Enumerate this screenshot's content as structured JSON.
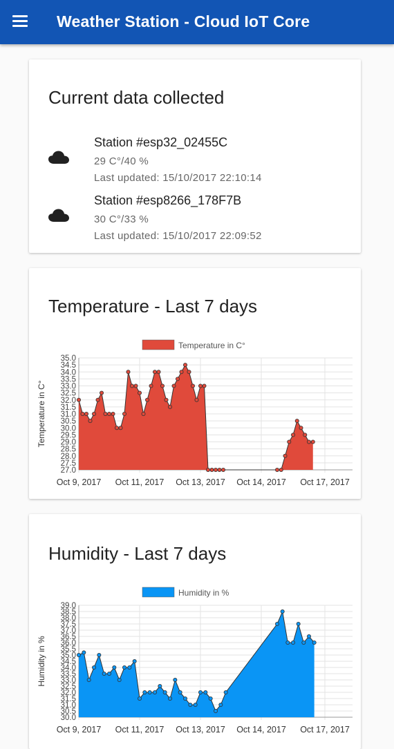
{
  "appbar": {
    "title": "Weather Station - Cloud IoT Core",
    "menu_icon": "menu-icon"
  },
  "current": {
    "title": "Current data collected",
    "stations": [
      {
        "name": "Station #esp32_02455C",
        "reading": "29 C°/40 %",
        "updated": "Last updated: 15/10/2017 22:10:14",
        "icon": "cloud-icon"
      },
      {
        "name": "Station #esp8266_178F7B",
        "reading": "30 C°/33 %",
        "updated": "Last updated: 15/10/2017 22:09:52",
        "icon": "cloud-icon"
      }
    ]
  },
  "temperature": {
    "title": "Temperature - Last 7 days"
  },
  "humidity": {
    "title": "Humidity - Last 7 days"
  },
  "chart_data": [
    {
      "type": "area",
      "legend": "Temperature in C°",
      "legend_position": "top",
      "ylabel": "Temperature in C°",
      "xlabel": "",
      "ylim": [
        27,
        35
      ],
      "ytick_step": 0.5,
      "yticks": [
        "27.0",
        "27.5",
        "28.0",
        "28.5",
        "29.0",
        "29.5",
        "30.0",
        "30.5",
        "31.0",
        "31.5",
        "32.0",
        "32.5",
        "33.0",
        "33.5",
        "34.0",
        "34.5",
        "35.0"
      ],
      "xlim": [
        "2017-10-09",
        "2017-10-17"
      ],
      "xticks": [
        "Oct 9, 2017",
        "Oct 11, 2017",
        "Oct 13, 2017",
        "Oct 14, 2017",
        "Oct 17, 2017"
      ],
      "grid": true,
      "color": "#e04a3b",
      "x": [
        "2017-10-09 00:00",
        "2017-10-09 03:00",
        "2017-10-09 06:00",
        "2017-10-09 09:00",
        "2017-10-09 12:00",
        "2017-10-09 15:00",
        "2017-10-09 18:00",
        "2017-10-09 21:00",
        "2017-10-10 00:00",
        "2017-10-10 03:00",
        "2017-10-10 06:00",
        "2017-10-10 09:00",
        "2017-10-10 12:00",
        "2017-10-10 15:00",
        "2017-10-10 18:00",
        "2017-10-10 21:00",
        "2017-10-11 00:00",
        "2017-10-11 03:00",
        "2017-10-11 06:00",
        "2017-10-11 09:00",
        "2017-10-11 12:00",
        "2017-10-11 15:00",
        "2017-10-11 18:00",
        "2017-10-11 21:00",
        "2017-10-12 00:00",
        "2017-10-12 03:00",
        "2017-10-12 06:00",
        "2017-10-12 09:00",
        "2017-10-12 12:00",
        "2017-10-12 15:00",
        "2017-10-12 18:00",
        "2017-10-12 21:00",
        "2017-10-13 00:00",
        "2017-10-13 03:00",
        "2017-10-13 06:00",
        "2017-10-13 09:00",
        "2017-10-13 12:00",
        "2017-10-13 15:00",
        "2017-10-13 18:00",
        "2017-10-15 12:00",
        "2017-10-15 15:00",
        "2017-10-15 18:00",
        "2017-10-15 21:00",
        "2017-10-16 00:00",
        "2017-10-16 03:00",
        "2017-10-16 06:00",
        "2017-10-16 09:00",
        "2017-10-16 12:00",
        "2017-10-16 15:00"
      ],
      "values": [
        32.0,
        31.0,
        31.0,
        30.5,
        31.0,
        32.0,
        32.5,
        31.0,
        31.0,
        31.0,
        30.0,
        30.0,
        31.0,
        34.0,
        33.0,
        33.0,
        32.5,
        31.0,
        32.0,
        33.0,
        34.0,
        34.0,
        33.0,
        32.0,
        31.5,
        33.0,
        33.5,
        34.0,
        34.5,
        34.0,
        33.0,
        32.0,
        33.0,
        33.0,
        27.0,
        27.0,
        27.0,
        27.0,
        27.0,
        27.0,
        27.0,
        28.0,
        29.0,
        29.5,
        30.5,
        30.0,
        29.5,
        29.0,
        29.0
      ]
    },
    {
      "type": "area",
      "legend": "Humidity in %",
      "legend_position": "top",
      "ylabel": "Humidity in %",
      "xlabel": "",
      "ylim": [
        30,
        39
      ],
      "ytick_step": 0.5,
      "yticks": [
        "30.0",
        "30.5",
        "31.0",
        "31.5",
        "32.0",
        "32.5",
        "33.0",
        "33.5",
        "34.0",
        "34.5",
        "35.0",
        "35.5",
        "36.0",
        "36.5",
        "37.0",
        "37.5",
        "38.0",
        "38.5",
        "39.0"
      ],
      "xlim": [
        "2017-10-09",
        "2017-10-17"
      ],
      "xticks": [
        "Oct 9, 2017",
        "Oct 11, 2017",
        "Oct 13, 2017",
        "Oct 14, 2017",
        "Oct 17, 2017"
      ],
      "grid": true,
      "color": "#0a95f5",
      "x": [
        "2017-10-09 00:00",
        "2017-10-09 04:00",
        "2017-10-09 08:00",
        "2017-10-09 12:00",
        "2017-10-09 16:00",
        "2017-10-09 20:00",
        "2017-10-10 00:00",
        "2017-10-10 04:00",
        "2017-10-10 08:00",
        "2017-10-10 12:00",
        "2017-10-10 16:00",
        "2017-10-10 20:00",
        "2017-10-11 00:00",
        "2017-10-11 04:00",
        "2017-10-11 08:00",
        "2017-10-11 12:00",
        "2017-10-11 16:00",
        "2017-10-11 20:00",
        "2017-10-12 00:00",
        "2017-10-12 04:00",
        "2017-10-12 08:00",
        "2017-10-12 12:00",
        "2017-10-12 16:00",
        "2017-10-12 20:00",
        "2017-10-13 00:00",
        "2017-10-13 04:00",
        "2017-10-13 08:00",
        "2017-10-13 12:00",
        "2017-10-13 16:00",
        "2017-10-13 20:00",
        "2017-10-15 12:00",
        "2017-10-15 16:00",
        "2017-10-15 20:00",
        "2017-10-16 00:00",
        "2017-10-16 04:00",
        "2017-10-16 08:00",
        "2017-10-16 12:00",
        "2017-10-16 16:00"
      ],
      "values": [
        35.0,
        35.2,
        33.0,
        34.0,
        35.0,
        33.5,
        33.5,
        34.0,
        33.0,
        34.0,
        34.0,
        34.5,
        31.5,
        32.0,
        32.0,
        32.0,
        32.5,
        32.0,
        31.5,
        33.0,
        32.0,
        31.5,
        31.0,
        31.0,
        32.0,
        32.0,
        31.5,
        30.5,
        31.0,
        32.0,
        37.5,
        38.5,
        36.0,
        36.0,
        37.5,
        36.0,
        36.5,
        36.0
      ]
    }
  ]
}
